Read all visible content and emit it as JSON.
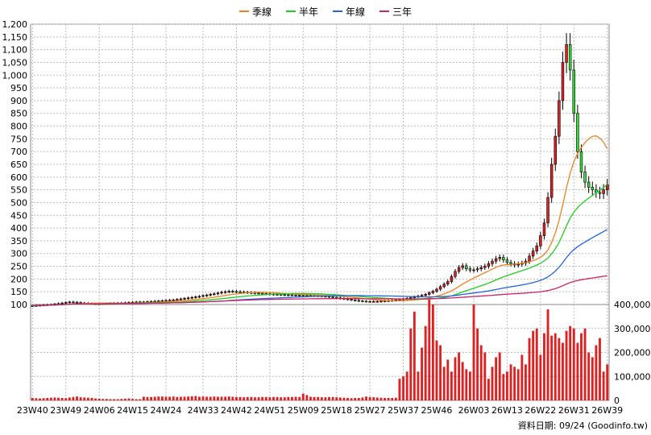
{
  "chart_data": {
    "type": "candlestick",
    "legend": {
      "placement": "top-center",
      "entries": [
        {
          "name": "季線",
          "color": "#ef7f1f"
        },
        {
          "name": "半年",
          "color": "#22cc22"
        },
        {
          "name": "年線",
          "color": "#2266dd"
        },
        {
          "name": "三年",
          "color": "#cc2266"
        }
      ]
    },
    "grid": true,
    "price_axis": {
      "side": "left",
      "range": [
        100,
        1200
      ],
      "ticks": [
        "100",
        "150",
        "200",
        "250",
        "300",
        "350",
        "400",
        "450",
        "500",
        "550",
        "600",
        "650",
        "700",
        "750",
        "800",
        "850",
        "900",
        "950",
        "1,000",
        "1,050",
        "1,100",
        "1,150",
        "1,200"
      ]
    },
    "volume_axis": {
      "side": "right",
      "range": [
        0,
        400000
      ],
      "ticks": [
        "0",
        "100,000",
        "200,000",
        "300,000",
        "400,000"
      ]
    },
    "x_tick_labels": [
      "23W40",
      "23W49",
      "24W06",
      "24W15",
      "24W24",
      "24W33",
      "24W42",
      "24W51",
      "25W09",
      "25W18",
      "25W27",
      "25W37",
      "25W46",
      "26W03",
      "26W13",
      "26W22",
      "26W31",
      "26W39"
    ],
    "weeks": 156,
    "close": [
      95,
      96,
      97,
      98,
      99,
      100,
      102,
      104,
      106,
      108,
      110,
      109,
      108,
      106,
      105,
      104,
      103,
      103,
      103,
      104,
      104,
      105,
      105,
      106,
      106,
      107,
      108,
      109,
      110,
      110,
      110,
      111,
      112,
      113,
      114,
      115,
      116,
      117,
      118,
      120,
      122,
      124,
      126,
      128,
      130,
      132,
      135,
      137,
      140,
      142,
      145,
      148,
      150,
      152,
      151,
      150,
      149,
      148,
      147,
      146,
      145,
      144,
      143,
      142,
      141,
      140,
      140,
      139,
      138,
      138,
      137,
      137,
      137,
      136,
      136,
      135,
      135,
      134,
      133,
      132,
      130,
      128,
      126,
      124,
      122,
      120,
      118,
      116,
      114,
      113,
      112,
      112,
      112,
      112,
      113,
      114,
      115,
      116,
      118,
      120,
      122,
      124,
      127,
      130,
      133,
      136,
      140,
      146,
      152,
      160,
      170,
      180,
      190,
      210,
      230,
      245,
      252,
      240,
      235,
      236,
      240,
      245,
      250,
      260,
      270,
      280,
      285,
      275,
      265,
      260,
      255,
      258,
      262,
      270,
      290,
      310,
      330,
      370,
      420,
      520,
      650,
      760,
      900,
      1050,
      1120,
      1020,
      850,
      700,
      620,
      580,
      560,
      550,
      540,
      535,
      550,
      570
    ],
    "volume": [
      10000,
      9000,
      8000,
      9000,
      10000,
      11000,
      12000,
      11000,
      10000,
      9000,
      12000,
      14000,
      16000,
      13000,
      12000,
      11000,
      10000,
      8000,
      7000,
      6000,
      6000,
      5000,
      5000,
      5000,
      6000,
      7000,
      8000,
      6000,
      5000,
      5000,
      15000,
      14000,
      14000,
      15000,
      16000,
      16000,
      15000,
      15000,
      16000,
      14000,
      15000,
      15000,
      16000,
      17000,
      18000,
      15000,
      16000,
      15000,
      15000,
      16000,
      15000,
      15000,
      15000,
      16000,
      15000,
      14000,
      14000,
      13000,
      14000,
      14000,
      13000,
      13000,
      14000,
      14000,
      13000,
      14000,
      14000,
      13000,
      13000,
      14000,
      14000,
      15000,
      14000,
      28000,
      22000,
      15000,
      14000,
      14000,
      13000,
      13000,
      14000,
      14000,
      13000,
      12000,
      11000,
      10000,
      9000,
      10000,
      10000,
      12000,
      16000,
      14000,
      13000,
      12000,
      11000,
      10000,
      10000,
      10000,
      11000,
      90000,
      100000,
      120000,
      300000,
      370000,
      120000,
      220000,
      310000,
      420000,
      400000,
      250000,
      230000,
      140000,
      170000,
      120000,
      180000,
      200000,
      160000,
      130000,
      120000,
      400000,
      300000,
      230000,
      200000,
      90000,
      140000,
      180000,
      200000,
      110000,
      120000,
      150000,
      140000,
      130000,
      190000,
      150000,
      260000,
      290000,
      300000,
      190000,
      280000,
      380000,
      270000,
      280000,
      260000,
      240000,
      290000,
      310000,
      300000,
      240000,
      280000,
      300000,
      200000,
      180000,
      230000,
      260000,
      120000,
      150000
    ]
  },
  "footer": {
    "source": "資料日期: 09/24  (Goodinfo.tw)"
  }
}
